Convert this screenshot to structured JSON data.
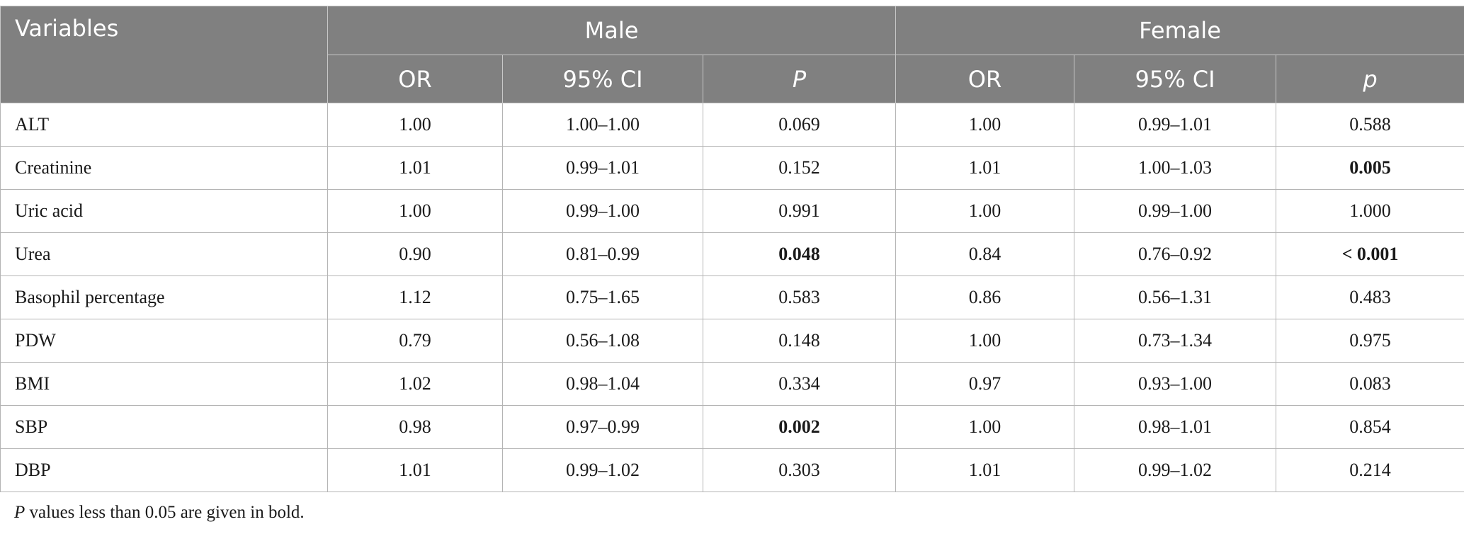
{
  "table": {
    "header": {
      "variables": "Variables",
      "male": "Male",
      "female": "Female",
      "sub": [
        "OR",
        "95% CI",
        "P",
        "OR",
        "95% CI",
        "p"
      ]
    },
    "rows": [
      {
        "variable": "ALT",
        "male_or": "1.00",
        "male_ci": "1.00–1.00",
        "male_p": "0.069",
        "male_p_bold": false,
        "female_or": "1.00",
        "female_ci": "0.99–1.01",
        "female_p": "0.588",
        "female_p_bold": false
      },
      {
        "variable": "Creatinine",
        "male_or": "1.01",
        "male_ci": "0.99–1.01",
        "male_p": "0.152",
        "male_p_bold": false,
        "female_or": "1.01",
        "female_ci": "1.00–1.03",
        "female_p": "0.005",
        "female_p_bold": true
      },
      {
        "variable": "Uric acid",
        "male_or": "1.00",
        "male_ci": "0.99–1.00",
        "male_p": "0.991",
        "male_p_bold": false,
        "female_or": "1.00",
        "female_ci": "0.99–1.00",
        "female_p": "1.000",
        "female_p_bold": false
      },
      {
        "variable": "Urea",
        "male_or": "0.90",
        "male_ci": "0.81–0.99",
        "male_p": "0.048",
        "male_p_bold": true,
        "female_or": "0.84",
        "female_ci": "0.76–0.92",
        "female_p": "< 0.001",
        "female_p_bold": true
      },
      {
        "variable": "Basophil percentage",
        "male_or": "1.12",
        "male_ci": "0.75–1.65",
        "male_p": "0.583",
        "male_p_bold": false,
        "female_or": "0.86",
        "female_ci": "0.56–1.31",
        "female_p": "0.483",
        "female_p_bold": false
      },
      {
        "variable": "PDW",
        "male_or": "0.79",
        "male_ci": "0.56–1.08",
        "male_p": "0.148",
        "male_p_bold": false,
        "female_or": "1.00",
        "female_ci": "0.73–1.34",
        "female_p": "0.975",
        "female_p_bold": false
      },
      {
        "variable": "BMI",
        "male_or": "1.02",
        "male_ci": "0.98–1.04",
        "male_p": "0.334",
        "male_p_bold": false,
        "female_or": "0.97",
        "female_ci": "0.93–1.00",
        "female_p": "0.083",
        "female_p_bold": false
      },
      {
        "variable": "SBP",
        "male_or": "0.98",
        "male_ci": "0.97–0.99",
        "male_p": "0.002",
        "male_p_bold": true,
        "female_or": "1.00",
        "female_ci": "0.98–1.01",
        "female_p": "0.854",
        "female_p_bold": false
      },
      {
        "variable": "DBP",
        "male_or": "1.01",
        "male_ci": "0.99–1.02",
        "male_p": "0.303",
        "male_p_bold": false,
        "female_or": "1.01",
        "female_ci": "0.99–1.02",
        "female_p": "0.214",
        "female_p_bold": false
      }
    ]
  },
  "footnote": {
    "p_symbol": "P",
    "text": " values less than 0.05 are given in bold."
  }
}
